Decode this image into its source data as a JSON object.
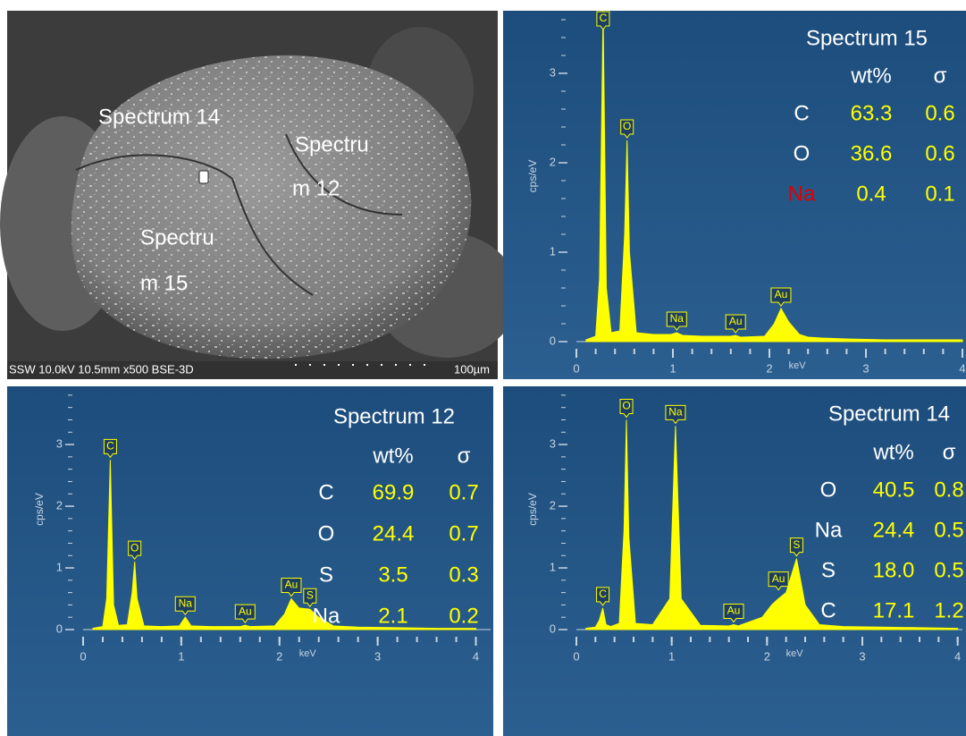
{
  "micrograph": {
    "labels": [
      "Spectrum 14",
      "Spectru",
      "m 12",
      "Spectru",
      "m 15"
    ],
    "info": "SSW 10.0kV 10.5mm x500 BSE-3D",
    "scale": "100µm"
  },
  "chart_data": [
    {
      "type": "area",
      "title": "Spectrum 15",
      "x_label": "keV",
      "y_label": "cps/eV",
      "color": "#ffff00",
      "xlim": [
        0,
        4.0
      ],
      "ylim": [
        0,
        3.7
      ],
      "xticks": [
        0,
        1,
        2,
        3,
        4
      ],
      "yticks": [
        0,
        1,
        2,
        3
      ],
      "x": [
        0.1,
        0.2,
        0.24,
        0.277,
        0.31,
        0.36,
        0.45,
        0.5,
        0.525,
        0.55,
        0.62,
        0.8,
        0.98,
        1.04,
        1.1,
        1.3,
        1.6,
        1.65,
        1.7,
        1.95,
        2.05,
        2.12,
        2.2,
        2.31,
        2.4,
        2.55,
        2.8,
        3.2,
        3.6,
        4.0
      ],
      "values": [
        0.02,
        0.06,
        0.7,
        3.7,
        0.6,
        0.1,
        0.12,
        1.2,
        2.25,
        1.0,
        0.1,
        0.08,
        0.08,
        0.1,
        0.07,
        0.06,
        0.06,
        0.07,
        0.05,
        0.06,
        0.2,
        0.37,
        0.22,
        0.08,
        0.05,
        0.04,
        0.03,
        0.02,
        0.02,
        0.02
      ],
      "annotations": [
        {
          "text": "C",
          "x": 0.277,
          "y": 3.7
        },
        {
          "text": "O",
          "x": 0.525,
          "y": 2.25
        },
        {
          "text": "Na",
          "x": 1.04,
          "y": 0.1
        },
        {
          "text": "Au",
          "x": 1.65,
          "y": 0.07
        },
        {
          "text": "Au",
          "x": 2.12,
          "y": 0.37
        }
      ],
      "table": {
        "columns": [
          "wt%",
          "σ"
        ],
        "value_color": "#ffff00",
        "rows": [
          {
            "element": "C",
            "wt": "63.3",
            "sigma": "0.6",
            "color": "#ffffff"
          },
          {
            "element": "O",
            "wt": "36.6",
            "sigma": "0.6",
            "color": "#ffffff"
          },
          {
            "element": "Na",
            "wt": "0.4",
            "sigma": "0.1",
            "color": "#e00000"
          }
        ]
      }
    },
    {
      "type": "area",
      "title": "Spectrum 12",
      "x_label": "keV",
      "y_label": "cps/eV",
      "color": "#ffff00",
      "xlim": [
        0,
        4.15
      ],
      "ylim": [
        0,
        3.9
      ],
      "xticks": [
        0,
        1,
        2,
        3,
        4
      ],
      "yticks": [
        0,
        1,
        2,
        3
      ],
      "x": [
        0.1,
        0.2,
        0.24,
        0.277,
        0.31,
        0.36,
        0.45,
        0.5,
        0.525,
        0.55,
        0.62,
        0.8,
        0.98,
        1.04,
        1.1,
        1.3,
        1.6,
        1.65,
        1.7,
        1.95,
        2.05,
        2.12,
        2.2,
        2.31,
        2.4,
        2.55,
        2.8,
        3.2,
        3.6,
        4.0
      ],
      "values": [
        0.02,
        0.05,
        0.5,
        2.75,
        0.4,
        0.07,
        0.08,
        0.6,
        1.1,
        0.5,
        0.06,
        0.05,
        0.06,
        0.2,
        0.06,
        0.05,
        0.05,
        0.07,
        0.05,
        0.06,
        0.25,
        0.5,
        0.35,
        0.33,
        0.2,
        0.06,
        0.04,
        0.03,
        0.02,
        0.02
      ],
      "annotations": [
        {
          "text": "C",
          "x": 0.277,
          "y": 2.75
        },
        {
          "text": "O",
          "x": 0.525,
          "y": 1.1
        },
        {
          "text": "Na",
          "x": 1.04,
          "y": 0.2
        },
        {
          "text": "Au",
          "x": 1.65,
          "y": 0.07
        },
        {
          "text": "Au",
          "x": 2.12,
          "y": 0.5
        },
        {
          "text": "S",
          "x": 2.31,
          "y": 0.33
        }
      ],
      "table": {
        "columns": [
          "wt%",
          "σ"
        ],
        "value_color": "#ffff00",
        "rows": [
          {
            "element": "C",
            "wt": "69.9",
            "sigma": "0.7",
            "color": "#ffffff"
          },
          {
            "element": "O",
            "wt": "24.4",
            "sigma": "0.7",
            "color": "#ffffff"
          },
          {
            "element": "S",
            "wt": "3.5",
            "sigma": "0.3",
            "color": "#ffffff"
          },
          {
            "element": "Na",
            "wt": "2.1",
            "sigma": "0.2",
            "color": "#ffffff"
          }
        ]
      }
    },
    {
      "type": "area",
      "title": "Spectrum 14",
      "x_label": "keV",
      "y_label": "cps/eV",
      "color": "#ffff00",
      "xlim": [
        0,
        4.05
      ],
      "ylim": [
        0,
        3.9
      ],
      "xticks": [
        0,
        1,
        2,
        3,
        4
      ],
      "yticks": [
        0,
        1,
        2,
        3
      ],
      "x": [
        0.1,
        0.2,
        0.24,
        0.277,
        0.31,
        0.36,
        0.45,
        0.5,
        0.525,
        0.55,
        0.62,
        0.8,
        0.98,
        1.04,
        1.1,
        1.3,
        1.6,
        1.65,
        1.7,
        1.95,
        2.05,
        2.12,
        2.2,
        2.31,
        2.4,
        2.55,
        2.8,
        3.2,
        3.6,
        4.0
      ],
      "values": [
        0.02,
        0.04,
        0.15,
        0.35,
        0.08,
        0.05,
        0.1,
        1.6,
        3.4,
        1.5,
        0.1,
        0.08,
        0.5,
        3.3,
        0.5,
        0.07,
        0.06,
        0.08,
        0.06,
        0.2,
        0.4,
        0.5,
        0.6,
        1.15,
        0.4,
        0.08,
        0.05,
        0.04,
        0.03,
        0.02
      ],
      "annotations": [
        {
          "text": "C",
          "x": 0.277,
          "y": 0.35
        },
        {
          "text": "O",
          "x": 0.525,
          "y": 3.4
        },
        {
          "text": "Na",
          "x": 1.04,
          "y": 3.3
        },
        {
          "text": "Au",
          "x": 1.65,
          "y": 0.08
        },
        {
          "text": "Au",
          "x": 2.12,
          "y": 0.6
        },
        {
          "text": "S",
          "x": 2.31,
          "y": 1.15
        }
      ],
      "table": {
        "columns": [
          "wt%",
          "σ"
        ],
        "value_color": "#ffff00",
        "rows": [
          {
            "element": "O",
            "wt": "40.5",
            "sigma": "0.8",
            "color": "#ffffff"
          },
          {
            "element": "Na",
            "wt": "24.4",
            "sigma": "0.5",
            "color": "#ffffff"
          },
          {
            "element": "S",
            "wt": "18.0",
            "sigma": "0.5",
            "color": "#ffffff"
          },
          {
            "element": "C",
            "wt": "17.1",
            "sigma": "1.2",
            "color": "#ffffff"
          }
        ]
      }
    }
  ]
}
